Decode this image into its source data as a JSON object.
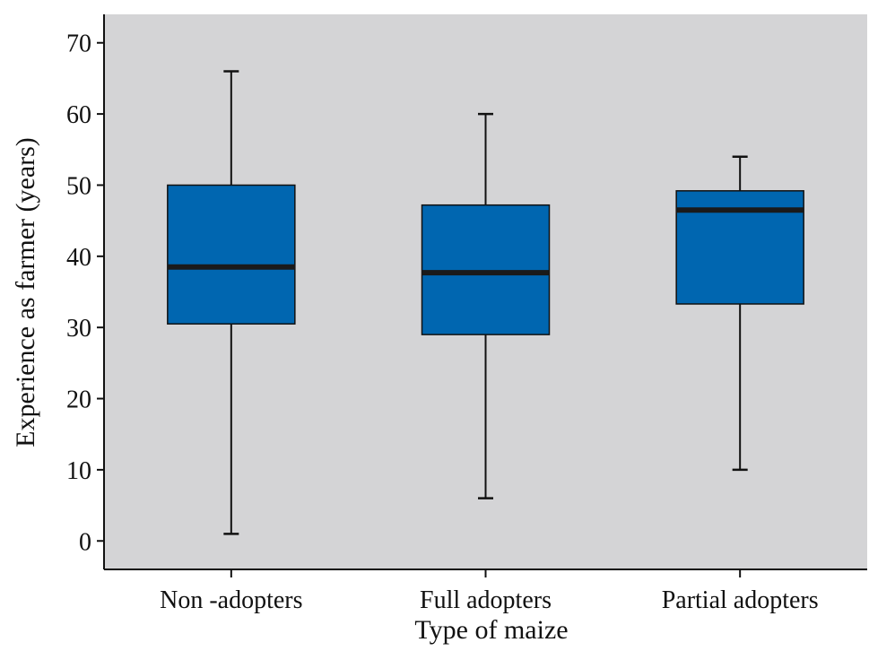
{
  "chart_data": {
    "type": "boxplot",
    "title": "",
    "xlabel": "Type of maize",
    "ylabel": "Experience as farmer (years)",
    "ylim": [
      -4,
      74
    ],
    "yticks": [
      0,
      10,
      20,
      30,
      40,
      50,
      60,
      70
    ],
    "yticklabels": [
      "0",
      "10",
      "20",
      "30",
      "40",
      "50",
      "60",
      "70"
    ],
    "grid": false,
    "legend": "none",
    "categories": [
      "Non -adopters",
      "Full adopters",
      "Partial adopters"
    ],
    "boxes": [
      {
        "category": "Non -adopters",
        "whisker_low": 1,
        "q1": 30.5,
        "median": 38.5,
        "q3": 50,
        "whisker_high": 66
      },
      {
        "category": "Full adopters",
        "whisker_low": 6,
        "q1": 29,
        "median": 37.7,
        "q3": 47.2,
        "whisker_high": 60
      },
      {
        "category": "Partial adopters",
        "whisker_low": 10,
        "q1": 33.3,
        "median": 46.5,
        "q3": 49.2,
        "whisker_high": 54
      }
    ],
    "colors": {
      "plot_background": "#d4d4d6",
      "box_fill": "#0066b0",
      "median_line": "#1a1a1a",
      "lines": "#111111"
    }
  }
}
